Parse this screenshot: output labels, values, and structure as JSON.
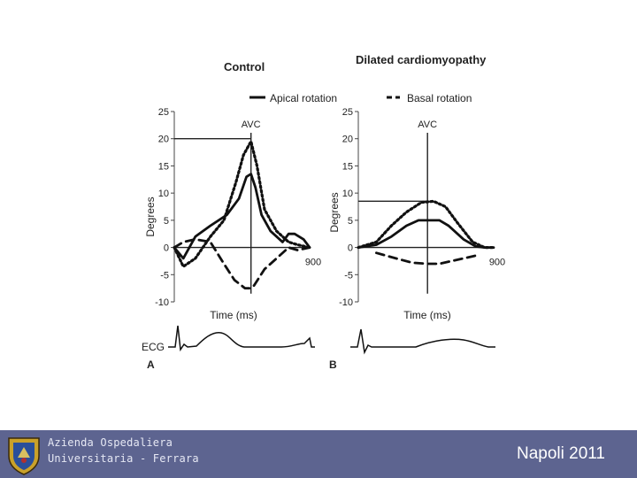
{
  "chart_data": [
    {
      "type": "line",
      "panel_label": "A",
      "title": "Control",
      "xlabel": "Time (ms)",
      "ylabel": "Degrees",
      "xlim": [
        0,
        900
      ],
      "ylim": [
        -10,
        25
      ],
      "yticks": [
        "25",
        "20",
        "15",
        "10",
        "5",
        "0",
        "-5",
        "-10"
      ],
      "x_tick_label": "900",
      "annotation": "AVC",
      "avc_x": 510,
      "avc_peak": 20,
      "series": [
        {
          "name": "Apical rotation",
          "style": "solid",
          "x": [
            0,
            60,
            140,
            240,
            350,
            430,
            480,
            510,
            540,
            580,
            640,
            720,
            760,
            800,
            860,
            900
          ],
          "y": [
            0,
            -2,
            2,
            4,
            6,
            9,
            13,
            13.5,
            11,
            6,
            3,
            1,
            2.5,
            2.5,
            1.5,
            0
          ]
        },
        {
          "name": "Basal rotation",
          "style": "dashed",
          "x": [
            0,
            60,
            140,
            240,
            330,
            400,
            470,
            500,
            530,
            600,
            680,
            760,
            820,
            900
          ],
          "y": [
            0,
            1,
            1.5,
            1,
            -3,
            -6,
            -7.5,
            -7.5,
            -7,
            -4,
            -2,
            0,
            -0.5,
            0
          ]
        },
        {
          "name": "",
          "style": "dotted",
          "x": [
            0,
            60,
            140,
            240,
            330,
            410,
            460,
            510,
            550,
            600,
            680,
            760,
            820,
            900
          ],
          "y": [
            0,
            -3.5,
            -2,
            2,
            5,
            12,
            17,
            19.5,
            15,
            7,
            3,
            1,
            0.5,
            0
          ]
        }
      ]
    },
    {
      "type": "line",
      "panel_label": "B",
      "title": "Dilated cardiomyopathy",
      "xlabel": "Time (ms)",
      "ylabel": "Degrees",
      "xlim": [
        0,
        900
      ],
      "ylim": [
        -10,
        25
      ],
      "yticks": [
        "25",
        "20",
        "15",
        "10",
        "5",
        "0",
        "-5",
        "-10"
      ],
      "x_tick_label": "900",
      "annotation": "AVC",
      "avc_x": 460,
      "avc_peak": 8.5,
      "series": [
        {
          "name": "Apical rotation",
          "style": "solid",
          "x": [
            0,
            120,
            220,
            320,
            400,
            460,
            540,
            600,
            700,
            780,
            840,
            900
          ],
          "y": [
            0,
            0.5,
            2,
            4,
            5,
            5,
            5,
            4,
            1.5,
            0.2,
            0,
            0
          ]
        },
        {
          "name": "Basal rotation",
          "style": "dashed",
          "x": [
            120,
            250,
            360,
            460,
            540,
            620,
            700,
            780
          ],
          "y": [
            -1,
            -2,
            -2.8,
            -3,
            -3,
            -2.5,
            -2,
            -1.5
          ]
        },
        {
          "name": "",
          "style": "dotted",
          "x": [
            0,
            120,
            220,
            320,
            420,
            500,
            580,
            660,
            760,
            840,
            900
          ],
          "y": [
            0,
            1,
            4,
            6.5,
            8.3,
            8.5,
            7.5,
            4.5,
            1,
            0,
            0
          ]
        }
      ]
    }
  ],
  "ecg_label": "ECG",
  "footer": {
    "org_line1": "Azienda Ospedaliera",
    "org_line2": "Universitaria - Ferrara",
    "event": "Napoli 2011"
  },
  "colors": {
    "footer_bg": "#5d6490",
    "ink": "#222222"
  }
}
